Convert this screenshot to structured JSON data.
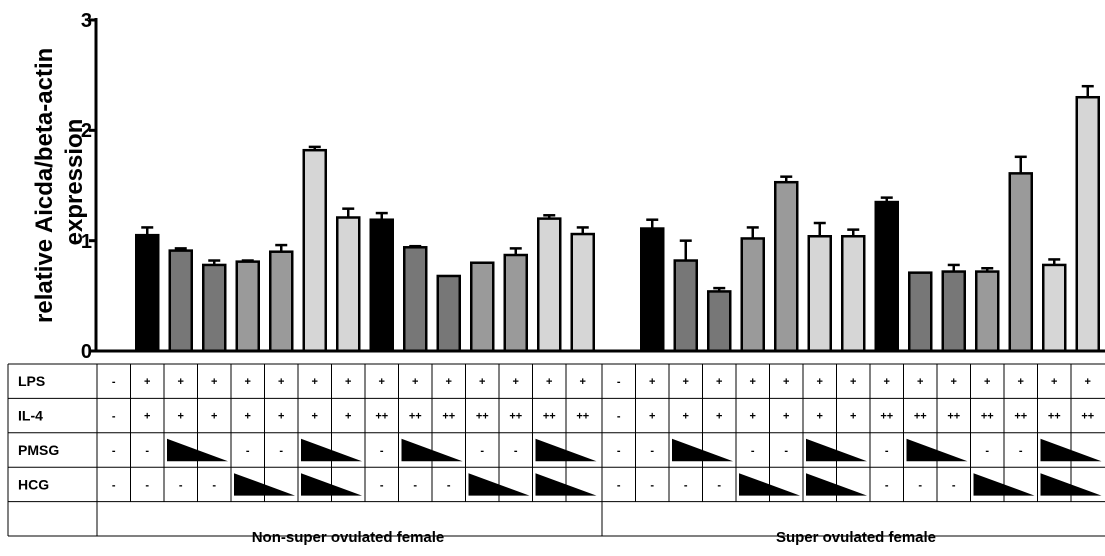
{
  "chart_data": {
    "type": "bar",
    "ylabel_lines": [
      "relative Aicda/beta-actin",
      "expression"
    ],
    "ylim": [
      0,
      3
    ],
    "yticks": [
      "0",
      "1",
      "2",
      "3"
    ],
    "grid": false,
    "bar_colors": {
      "k": "#000000",
      "d": "#777777",
      "m": "#9a9a9a",
      "l": "#d6d6d6"
    },
    "groups": [
      {
        "label": "Non-super ovulated female",
        "values": [
          null,
          1.05,
          0.91,
          0.78,
          0.81,
          0.9,
          1.82,
          1.21,
          1.19,
          0.94,
          0.68,
          0.8,
          0.87,
          1.2,
          1.06
        ],
        "errors": [
          0,
          0.07,
          0.02,
          0.04,
          0.01,
          0.06,
          0.03,
          0.08,
          0.06,
          0.01,
          0,
          0,
          0.06,
          0.03,
          0.06
        ],
        "colors": [
          "k",
          "k",
          "d",
          "d",
          "m",
          "m",
          "l",
          "l",
          "k",
          "d",
          "d",
          "m",
          "m",
          "l",
          "l"
        ]
      },
      {
        "label": "Super ovulated female",
        "values": [
          null,
          1.11,
          0.82,
          0.54,
          1.02,
          1.53,
          1.04,
          1.04,
          1.35,
          0.71,
          0.72,
          0.72,
          1.61,
          0.78,
          2.3
        ],
        "errors": [
          0,
          0.08,
          0.18,
          0.03,
          0.1,
          0.05,
          0.12,
          0.06,
          0.04,
          0,
          0.06,
          0.03,
          0.15,
          0.05,
          0.1
        ],
        "colors": [
          "k",
          "k",
          "d",
          "d",
          "m",
          "m",
          "l",
          "l",
          "k",
          "d",
          "d",
          "m",
          "m",
          "l",
          "l"
        ]
      }
    ],
    "table": {
      "rows": [
        "LPS",
        "IL-4",
        "PMSG",
        "HCG"
      ],
      "cells": [
        [
          "-",
          "+",
          "+",
          "+",
          "+",
          "+",
          "+",
          "+",
          "+",
          "+",
          "+",
          "+",
          "+",
          "+",
          "+"
        ],
        [
          "-",
          "+",
          "+",
          "+",
          "+",
          "+",
          "+",
          "+",
          "++",
          "++",
          "++",
          "++",
          "++",
          "++",
          "++"
        ],
        [
          "-",
          "-",
          "ramp",
          "",
          "-",
          "-",
          "ramp",
          "",
          "-",
          "ramp",
          "",
          "-",
          "-",
          "ramp",
          ""
        ],
        [
          "-",
          "-",
          "-",
          "-",
          "ramp",
          "",
          "ramp",
          "",
          "-",
          "-",
          "-",
          "ramp",
          "",
          "ramp",
          ""
        ]
      ]
    }
  }
}
